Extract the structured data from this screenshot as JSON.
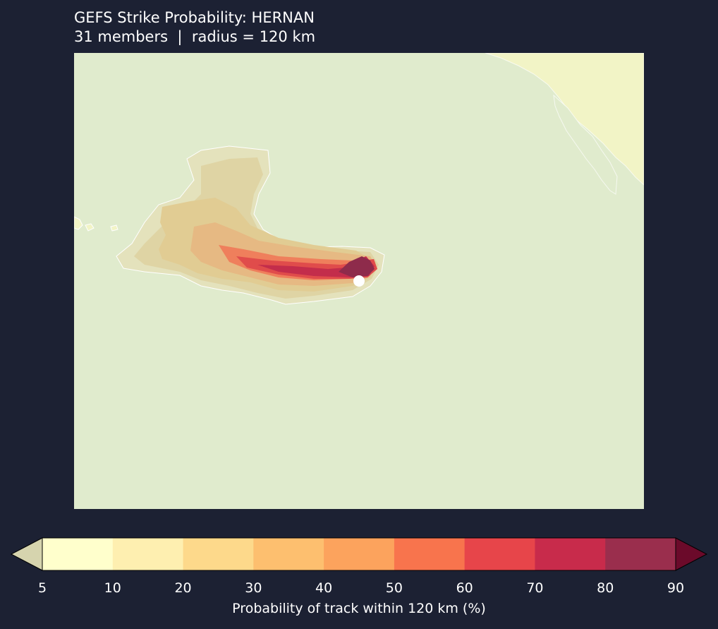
{
  "title": {
    "line1": "GEFS Strike Probability: HERNAN",
    "line2": "31 members  |  radius = 120 km"
  },
  "colorbar": {
    "label": "Probability of track within 120 km (%)",
    "levels": [
      5,
      10,
      20,
      30,
      40,
      50,
      60,
      70,
      80,
      90
    ],
    "tick_labels": [
      "5",
      "10",
      "20",
      "30",
      "40",
      "50",
      "60",
      "70",
      "80",
      "90"
    ],
    "under_color": "#d6d4ae",
    "over_color": "#6b0a2a",
    "colors": [
      "#ffffcc",
      "#feefb0",
      "#fdd98b",
      "#fdbf6f",
      "#fca35d",
      "#f8744d",
      "#e7454a",
      "#c82b4b",
      "#9a2e4d"
    ]
  },
  "map": {
    "ocean_color": "#e0ebcd",
    "land_color": "#f2f4c6",
    "storm_marker_color": "#ffffff"
  }
}
